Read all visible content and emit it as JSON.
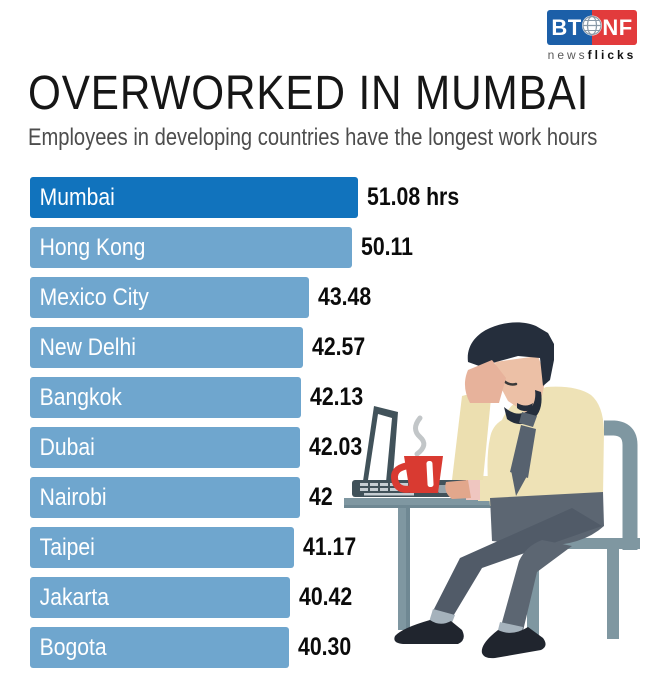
{
  "logo": {
    "bt": "BT",
    "nf": "NF",
    "tagline_normal": "news",
    "tagline_bold": "flicks",
    "blue": "#1c5fa8",
    "red": "#e23b3c"
  },
  "header": {
    "title": "OVERWORKED IN MUMBAI",
    "subtitle": "Employees in developing countries have the longest work hours"
  },
  "chart_data": {
    "type": "bar",
    "orientation": "horizontal",
    "title": "OVERWORKED IN MUMBAI",
    "subtitle": "Employees in developing countries have the longest work hours",
    "unit": "hrs",
    "categories": [
      "Mumbai",
      "Hong Kong",
      "Mexico City",
      "New Delhi",
      "Bangkok",
      "Dubai",
      "Nairobi",
      "Taipei",
      "Jakarta",
      "Bogota"
    ],
    "values": [
      51.08,
      50.11,
      43.48,
      42.57,
      42.13,
      42.03,
      42,
      41.17,
      40.42,
      40.3
    ],
    "value_labels": [
      "51.08 hrs",
      "50.11",
      "43.48",
      "42.57",
      "42.13",
      "42.03",
      "42",
      "41.17",
      "40.42",
      "40.30"
    ],
    "xlim": [
      0,
      51.08
    ],
    "highlight_index": 0,
    "highlight_color": "#1173bd",
    "bar_color": "#6fa6ce",
    "grid": false,
    "legend": false
  },
  "illustration": {
    "description": "Tired office worker sitting at a desk with laptop and steaming red coffee mug, head resting on hand",
    "colors": {
      "desk_chair": "#7f97a1",
      "laptop": "#41525a",
      "mug": "#d93a31",
      "skin": "#ecc0a6",
      "hair": "#252e3c",
      "shirt": "#eee2b6",
      "tie": "#57626f",
      "pants": "#5c6672",
      "shoes": "#20252e"
    }
  }
}
